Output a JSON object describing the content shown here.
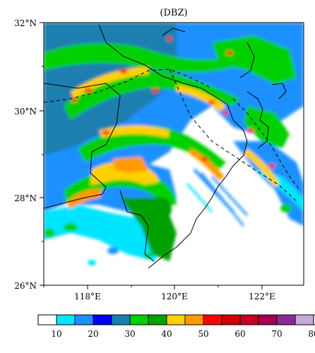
{
  "title": "(DBZ)",
  "map": {
    "y_ticks": [
      "32°N",
      "30°N",
      "28°N",
      "26°N"
    ],
    "x_ticks": [
      "118°E",
      "120°E",
      "122°E"
    ]
  },
  "colorbar": {
    "tick_labels": [
      "10",
      "20",
      "30",
      "40",
      "50",
      "60",
      "70",
      "80"
    ],
    "colors": [
      "#ffffff",
      "#00e5ff",
      "#1e90ff",
      "#0000f0",
      "#1a7fb0",
      "#00d000",
      "#00a000",
      "#ffd000",
      "#ff9a00",
      "#ff0000",
      "#d00000",
      "#c00020",
      "#a00050",
      "#8a2a9a",
      "#c6a8d8",
      "#ffffff"
    ]
  }
}
